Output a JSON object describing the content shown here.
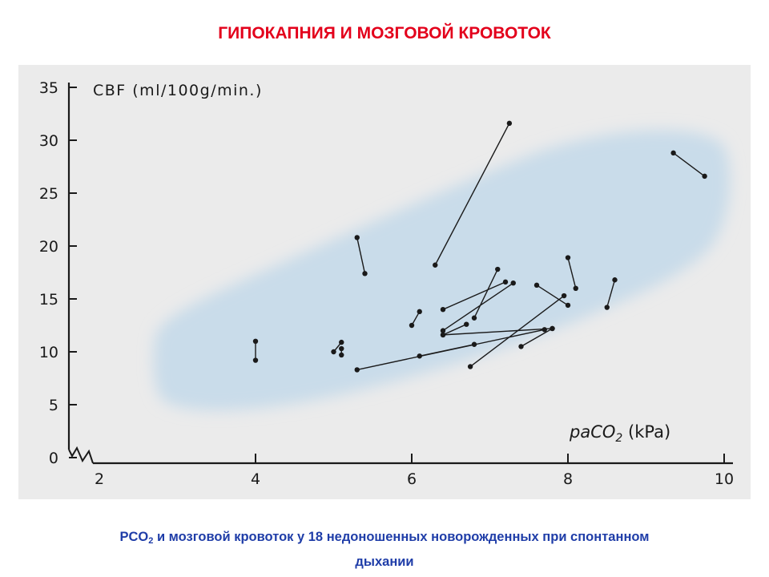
{
  "slide": {
    "title": "ГИПОКАПНИЯ И МОЗГОВОЙ КРОВОТОК",
    "caption_prefix": "PCO",
    "caption_sub": "2",
    "caption_rest": " и мозговой кровоток у 18 недоношенных новорожденных при спонтанном",
    "caption_line2": "дыхании"
  },
  "colors": {
    "title": "#e3001b",
    "caption": "#1f3da8",
    "shading": "#c9dcea",
    "ink": "#1a1a1a"
  },
  "chart_data": {
    "type": "scatter",
    "title": "",
    "ylabel": "CBF (ml/100g/min.)",
    "xlabel_main": "paCO",
    "xlabel_sub": "2",
    "xlabel_unit": " (kPa)",
    "xlim": [
      2,
      10
    ],
    "ylim": [
      0,
      35
    ],
    "x_ticks": [
      "2",
      "4",
      "6",
      "8",
      "10"
    ],
    "y_ticks": [
      "0",
      "5",
      "10",
      "15",
      "20",
      "25",
      "30",
      "35"
    ],
    "axis_break": true,
    "grid": false,
    "legend": "none",
    "shaded_region": "light blue band indicating normal range",
    "pairs": [
      [
        [
          4.0,
          11.0
        ],
        [
          4.0,
          9.2
        ]
      ],
      [
        [
          5.0,
          10.0
        ],
        [
          5.1,
          10.9
        ]
      ],
      [
        [
          5.1,
          10.3
        ],
        [
          5.1,
          9.7
        ]
      ],
      [
        [
          5.3,
          20.8
        ],
        [
          5.4,
          17.4
        ]
      ],
      [
        [
          5.3,
          8.3
        ],
        [
          7.7,
          12.1
        ]
      ],
      [
        [
          6.0,
          12.5
        ],
        [
          6.1,
          13.8
        ]
      ],
      [
        [
          6.1,
          9.6
        ],
        [
          6.8,
          10.7
        ]
      ],
      [
        [
          6.3,
          18.2
        ],
        [
          7.25,
          31.6
        ]
      ],
      [
        [
          6.4,
          14.0
        ],
        [
          7.2,
          16.6
        ]
      ],
      [
        [
          6.4,
          12.0
        ],
        [
          7.3,
          16.5
        ]
      ],
      [
        [
          6.4,
          11.6
        ],
        [
          6.7,
          12.6
        ]
      ],
      [
        [
          6.4,
          11.6
        ],
        [
          7.8,
          12.2
        ]
      ],
      [
        [
          6.75,
          8.6
        ],
        [
          7.95,
          15.3
        ]
      ],
      [
        [
          6.8,
          13.2
        ],
        [
          7.1,
          17.8
        ]
      ],
      [
        [
          7.4,
          10.5
        ],
        [
          7.8,
          12.2
        ]
      ],
      [
        [
          7.6,
          16.3
        ],
        [
          8.0,
          14.4
        ]
      ],
      [
        [
          8.0,
          18.9
        ],
        [
          8.1,
          16.0
        ]
      ],
      [
        [
          8.5,
          14.2
        ],
        [
          8.6,
          16.8
        ]
      ],
      [
        [
          9.35,
          28.8
        ],
        [
          9.75,
          26.6
        ]
      ]
    ]
  }
}
